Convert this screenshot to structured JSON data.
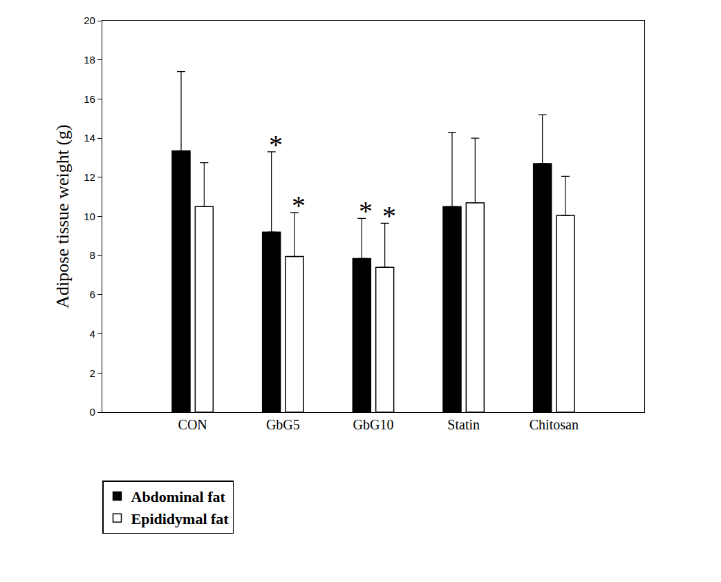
{
  "chart_data": {
    "type": "bar",
    "y_label": "Adipose tissue weight (g)",
    "categories": [
      "CON",
      "GbG5",
      "GbG10",
      "Statin",
      "Chitosan"
    ],
    "series": [
      {
        "name": "Abdominal fat",
        "color": "#000000",
        "values": [
          13.35,
          9.2,
          7.85,
          10.5,
          12.7
        ],
        "errors": [
          4.05,
          4.1,
          2.05,
          3.8,
          2.5
        ]
      },
      {
        "name": "Epididymal fat",
        "color": "#ffffff",
        "values": [
          10.5,
          7.95,
          7.4,
          10.7,
          10.05
        ],
        "errors": [
          2.25,
          2.25,
          2.25,
          3.3,
          2.0
        ]
      }
    ],
    "ylim": [
      0,
      20
    ],
    "yticks": [
      0,
      2,
      4,
      6,
      8,
      10,
      12,
      14,
      16,
      18,
      20
    ],
    "grid": false,
    "legend": "bottom left",
    "annotations": [
      {
        "text": "*",
        "category": "GbG5",
        "series": "Abdominal fat"
      },
      {
        "text": "*",
        "category": "GbG5",
        "series": "Epididymal fat"
      },
      {
        "text": "*",
        "category": "GbG10",
        "series": "Abdominal fat"
      },
      {
        "text": "*",
        "category": "GbG10",
        "series": "Epididymal fat"
      }
    ]
  }
}
